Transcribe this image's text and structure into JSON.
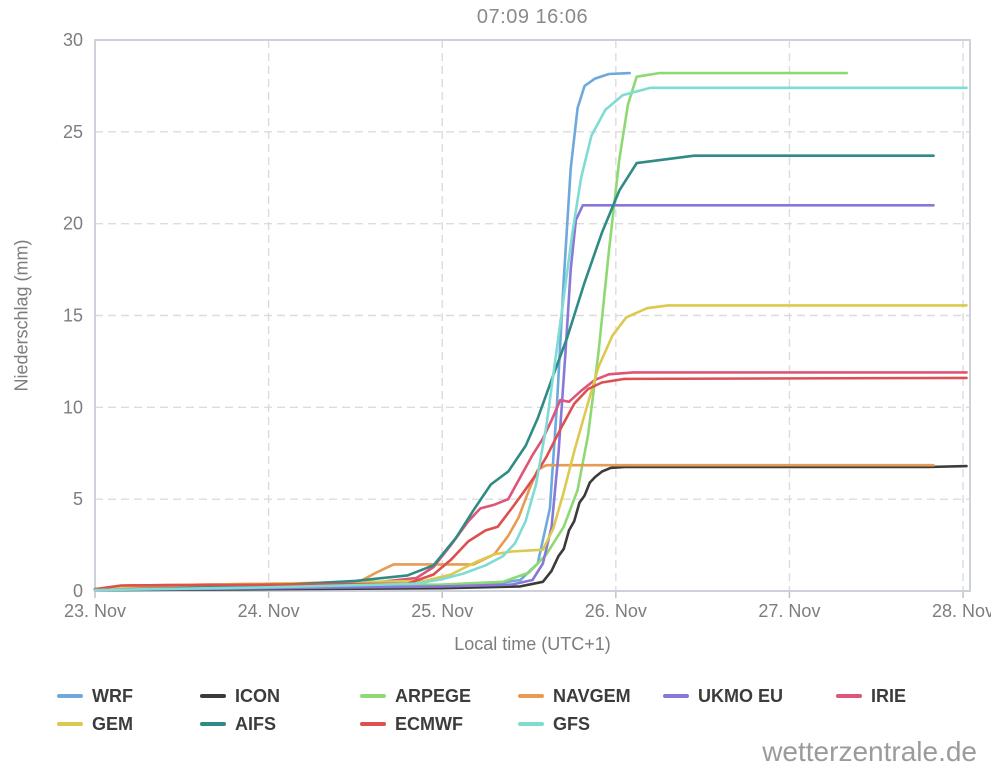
{
  "watermark": "wetterzentrale.de",
  "chart_data": {
    "type": "line",
    "title": "07:09 16:06",
    "xlabel": "Local time (UTC+1)",
    "ylabel": "Niederschlag (mm)",
    "x_tick_labels": [
      "23. Nov",
      "24. Nov",
      "25. Nov",
      "26. Nov",
      "27. Nov",
      "28. Nov"
    ],
    "x_tick_days": [
      0,
      1,
      2,
      3,
      4,
      5
    ],
    "y_ticks": [
      0,
      5,
      10,
      15,
      20,
      25,
      30
    ],
    "x_range": [
      0,
      5.04
    ],
    "y_range": [
      0,
      30
    ],
    "grid": "dashed",
    "grid_color": "#dcdcdc",
    "border_color": "#cdd2da",
    "tick_color": "#b9c3d3",
    "tick_label_color": "#7d7d7d",
    "legend_position": "bottom",
    "series": [
      {
        "name": "WRF",
        "color": "#6fa8dc",
        "final_value_mm": 28.2,
        "points": [
          [
            0,
            0.1
          ],
          [
            0.5,
            0.25
          ],
          [
            1.2,
            0.3
          ],
          [
            2.0,
            0.3
          ],
          [
            2.3,
            0.4
          ],
          [
            2.45,
            0.6
          ],
          [
            2.55,
            1.5
          ],
          [
            2.62,
            4.5
          ],
          [
            2.66,
            10
          ],
          [
            2.7,
            17
          ],
          [
            2.74,
            23
          ],
          [
            2.78,
            26.3
          ],
          [
            2.82,
            27.5
          ],
          [
            2.88,
            27.9
          ],
          [
            2.96,
            28.15
          ],
          [
            3.08,
            28.2
          ]
        ]
      },
      {
        "name": "ICON",
        "color": "#3b3b3b",
        "final_value_mm": 6.8,
        "points": [
          [
            0,
            0.05
          ],
          [
            1,
            0.1
          ],
          [
            2,
            0.15
          ],
          [
            2.45,
            0.25
          ],
          [
            2.58,
            0.5
          ],
          [
            2.63,
            1.1
          ],
          [
            2.67,
            1.9
          ],
          [
            2.7,
            2.3
          ],
          [
            2.73,
            3.3
          ],
          [
            2.76,
            3.8
          ],
          [
            2.79,
            4.8
          ],
          [
            2.82,
            5.2
          ],
          [
            2.85,
            5.9
          ],
          [
            2.88,
            6.2
          ],
          [
            2.92,
            6.5
          ],
          [
            2.97,
            6.7
          ],
          [
            3.05,
            6.75
          ],
          [
            4.8,
            6.75
          ],
          [
            5.02,
            6.8
          ]
        ]
      },
      {
        "name": "ARPEGE",
        "color": "#8ed973",
        "final_value_mm": 28.2,
        "points": [
          [
            0,
            0.1
          ],
          [
            0.3,
            0.2
          ],
          [
            1,
            0.3
          ],
          [
            2,
            0.35
          ],
          [
            2.35,
            0.5
          ],
          [
            2.5,
            1.0
          ],
          [
            2.6,
            2.0
          ],
          [
            2.7,
            3.5
          ],
          [
            2.78,
            5.5
          ],
          [
            2.84,
            8.5
          ],
          [
            2.9,
            13
          ],
          [
            2.96,
            18.5
          ],
          [
            3.02,
            23.5
          ],
          [
            3.07,
            26.5
          ],
          [
            3.12,
            28.0
          ],
          [
            3.25,
            28.2
          ],
          [
            4.33,
            28.2
          ]
        ]
      },
      {
        "name": "NAVGEM",
        "color": "#e89b52",
        "final_value_mm": 6.85,
        "points": [
          [
            0,
            0.1
          ],
          [
            0.5,
            0.25
          ],
          [
            1,
            0.3
          ],
          [
            1.5,
            0.4
          ],
          [
            1.62,
            1.0
          ],
          [
            1.72,
            1.45
          ],
          [
            2.18,
            1.45
          ],
          [
            2.3,
            2.0
          ],
          [
            2.38,
            3.0
          ],
          [
            2.44,
            4.0
          ],
          [
            2.5,
            5.5
          ],
          [
            2.55,
            6.6
          ],
          [
            2.6,
            6.85
          ],
          [
            4.83,
            6.85
          ]
        ]
      },
      {
        "name": "UKMO EU",
        "color": "#8878d8",
        "final_value_mm": 21.0,
        "points": [
          [
            0,
            0.05
          ],
          [
            1,
            0.15
          ],
          [
            2,
            0.25
          ],
          [
            2.4,
            0.35
          ],
          [
            2.52,
            0.6
          ],
          [
            2.58,
            1.5
          ],
          [
            2.63,
            3.5
          ],
          [
            2.67,
            7.5
          ],
          [
            2.71,
            13
          ],
          [
            2.74,
            17.5
          ],
          [
            2.77,
            20.2
          ],
          [
            2.81,
            21.0
          ],
          [
            4.83,
            21.0
          ]
        ]
      },
      {
        "name": "IRIE",
        "color": "#dd5577",
        "final_value_mm": 11.9,
        "points": [
          [
            0,
            0.1
          ],
          [
            0.2,
            0.3
          ],
          [
            1,
            0.4
          ],
          [
            1.6,
            0.45
          ],
          [
            1.85,
            0.7
          ],
          [
            1.95,
            1.3
          ],
          [
            2.05,
            2.5
          ],
          [
            2.15,
            3.8
          ],
          [
            2.22,
            4.5
          ],
          [
            2.3,
            4.7
          ],
          [
            2.38,
            5.0
          ],
          [
            2.45,
            6.2
          ],
          [
            2.52,
            7.4
          ],
          [
            2.58,
            8.3
          ],
          [
            2.63,
            9.3
          ],
          [
            2.68,
            10.4
          ],
          [
            2.73,
            10.3
          ],
          [
            2.8,
            10.9
          ],
          [
            2.88,
            11.5
          ],
          [
            2.96,
            11.8
          ],
          [
            3.1,
            11.9
          ],
          [
            5.02,
            11.9
          ]
        ]
      },
      {
        "name": "GEM",
        "color": "#ddc94f",
        "final_value_mm": 15.55,
        "points": [
          [
            0,
            0.1
          ],
          [
            0.25,
            0.3
          ],
          [
            1,
            0.4
          ],
          [
            1.9,
            0.55
          ],
          [
            2.05,
            0.9
          ],
          [
            2.2,
            1.6
          ],
          [
            2.3,
            2.0
          ],
          [
            2.4,
            2.15
          ],
          [
            2.58,
            2.25
          ],
          [
            2.64,
            3.4
          ],
          [
            2.7,
            5.4
          ],
          [
            2.76,
            7.6
          ],
          [
            2.82,
            9.6
          ],
          [
            2.9,
            12.2
          ],
          [
            2.98,
            13.9
          ],
          [
            3.06,
            14.9
          ],
          [
            3.18,
            15.4
          ],
          [
            3.3,
            15.55
          ],
          [
            5.02,
            15.55
          ]
        ]
      },
      {
        "name": "AIFS",
        "color": "#2f8b85",
        "final_value_mm": 23.7,
        "points": [
          [
            0,
            0.05
          ],
          [
            0.5,
            0.15
          ],
          [
            1,
            0.3
          ],
          [
            1.5,
            0.55
          ],
          [
            1.8,
            0.85
          ],
          [
            1.95,
            1.4
          ],
          [
            2.08,
            2.9
          ],
          [
            2.18,
            4.4
          ],
          [
            2.28,
            5.8
          ],
          [
            2.38,
            6.5
          ],
          [
            2.48,
            7.9
          ],
          [
            2.55,
            9.4
          ],
          [
            2.63,
            11.5
          ],
          [
            2.72,
            13.8
          ],
          [
            2.82,
            16.8
          ],
          [
            2.92,
            19.5
          ],
          [
            3.02,
            21.8
          ],
          [
            3.12,
            23.3
          ],
          [
            3.45,
            23.7
          ],
          [
            4.83,
            23.7
          ]
        ]
      },
      {
        "name": "ECMWF",
        "color": "#dd5050",
        "final_value_mm": 11.6,
        "points": [
          [
            0,
            0.1
          ],
          [
            0.15,
            0.3
          ],
          [
            1.0,
            0.35
          ],
          [
            1.8,
            0.4
          ],
          [
            1.95,
            0.9
          ],
          [
            2.05,
            1.7
          ],
          [
            2.15,
            2.7
          ],
          [
            2.25,
            3.3
          ],
          [
            2.32,
            3.5
          ],
          [
            2.4,
            4.5
          ],
          [
            2.47,
            5.4
          ],
          [
            2.53,
            6.2
          ],
          [
            2.6,
            7.3
          ],
          [
            2.68,
            8.8
          ],
          [
            2.76,
            10.2
          ],
          [
            2.84,
            11.0
          ],
          [
            2.92,
            11.35
          ],
          [
            3.05,
            11.55
          ],
          [
            5.02,
            11.6
          ]
        ]
      },
      {
        "name": "GFS",
        "color": "#7fdcd2",
        "final_value_mm": 27.4,
        "points": [
          [
            0,
            0.05
          ],
          [
            1,
            0.2
          ],
          [
            1.85,
            0.4
          ],
          [
            2.0,
            0.65
          ],
          [
            2.12,
            0.95
          ],
          [
            2.25,
            1.4
          ],
          [
            2.35,
            1.9
          ],
          [
            2.42,
            2.6
          ],
          [
            2.48,
            3.8
          ],
          [
            2.54,
            5.8
          ],
          [
            2.6,
            9.0
          ],
          [
            2.65,
            12.5
          ],
          [
            2.7,
            16.0
          ],
          [
            2.75,
            19.5
          ],
          [
            2.8,
            22.5
          ],
          [
            2.86,
            24.8
          ],
          [
            2.94,
            26.2
          ],
          [
            3.04,
            27.0
          ],
          [
            3.2,
            27.4
          ],
          [
            5.02,
            27.4
          ]
        ]
      }
    ]
  }
}
